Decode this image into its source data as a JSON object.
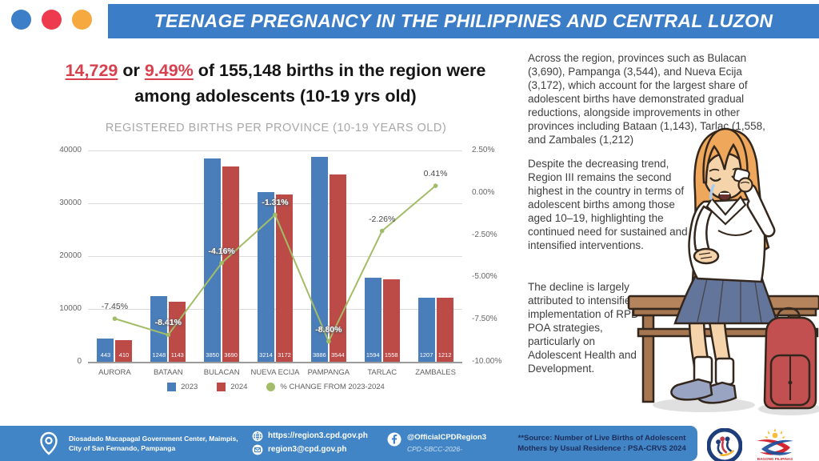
{
  "header": {
    "title": "TEENAGE PREGNANCY IN THE PHILIPPINES AND CENTRAL LUZON",
    "dot_colors": [
      "#3d7ec8",
      "#ee3a4f",
      "#f5a93e"
    ]
  },
  "headline": {
    "stat_births": "14,729",
    "connector": " or ",
    "stat_pct": "9.49%",
    "rest": " of 155,148 births in the region were among adolescents (10-19 yrs old)"
  },
  "chart_data": {
    "type": "bar",
    "title": "REGISTERED BIRTHS PER PROVINCE (10-19 YEARS OLD)",
    "categories": [
      "AURORA",
      "BATAAN",
      "BULACAN",
      "NUEVA ECIJA",
      "PAMPANGA",
      "TARLAC",
      "ZAMBALES"
    ],
    "series": [
      {
        "name": "2023",
        "type": "bar",
        "color": "#4a7ebb",
        "values": [
          443,
          1248,
          3850,
          3214,
          3886,
          1594,
          1207
        ]
      },
      {
        "name": "2024",
        "type": "bar",
        "color": "#bc4a47",
        "values": [
          410,
          1143,
          3690,
          3172,
          3544,
          1558,
          1212
        ]
      },
      {
        "name": "% CHANGE FROM 2023-2024",
        "type": "line",
        "color": "#a2bd68",
        "values": [
          -7.45,
          -8.41,
          -4.16,
          -1.31,
          -8.8,
          -2.26,
          0.41
        ]
      }
    ],
    "left_axis": {
      "ticks": [
        "40000",
        "30000",
        "20000",
        "10000",
        "0"
      ],
      "min": 0,
      "max": 40000
    },
    "right_axis": {
      "ticks": [
        "2.50%",
        "0.00%",
        "-2.50%",
        "-5.00%",
        "-7.50%",
        "-10.00%"
      ],
      "min": -10,
      "max": 2.5
    },
    "bar_display_scale": 10,
    "pct_label_styles": [
      "dark",
      "light",
      "light",
      "light",
      "light",
      "dark",
      "dark"
    ],
    "legend": [
      "2023",
      "2024",
      "% CHANGE FROM 2023-2024"
    ],
    "grid": true,
    "legend_position": "bottom"
  },
  "right_column": {
    "para1": "Across the region, provinces such as Bulacan (3,690), Pampanga (3,544), and Nueva Ecija (3,172), which account for the largest share of adolescent births have demonstrated gradual reductions, alongside improvements in other provinces including Bataan (1,143), Tarlac (1,558, and Zambales (1,212)",
    "para2": "Despite the decreasing trend, Region III remains the second highest in the country in terms of adolescent births among those aged 10–19, highlighting the continued need for sustained and intensified interventions.",
    "para3": "The decline is largely attributed to intensified implementation of RPD-POA strategies, particularly on Adolescent Health and Development."
  },
  "footer": {
    "address_line1": "Diosadado Macapagal Government Center, Maimpis,",
    "address_line2": "City of San Fernando, Pampanga",
    "website": "https://region3.cpd.gov.ph",
    "email": "region3@cpd.gov.ph",
    "facebook": "@OfficialCPDRegion3",
    "code": "CPD-SBCC-2026-",
    "source_line1": "**Source: Number of Live Births of Adolescent",
    "source_line2": "Mothers by Usual Residence : PSA-CRVS 2024",
    "bagong_label": "BAGONG PILIPINAS"
  },
  "icons": {
    "header_dots": [
      "blue-dot",
      "red-dot",
      "orange-dot"
    ],
    "footer_icons": [
      "location-pin-icon",
      "globe-icon",
      "envelope-icon",
      "facebook-icon"
    ],
    "logos": [
      "cpd-seal-logo",
      "bagong-pilipinas-logo"
    ],
    "illustration": "crying-pregnant-student-illustration"
  },
  "colors": {
    "banner_blue": "#3c7dc8",
    "footer_blue": "#4285c6",
    "bar_2023_blue": "#4a7ebb",
    "bar_2024_red": "#bc4a47",
    "line_green": "#a2bd68",
    "headline_red": "#d7404d",
    "source_navy": "#1d2d5a"
  }
}
